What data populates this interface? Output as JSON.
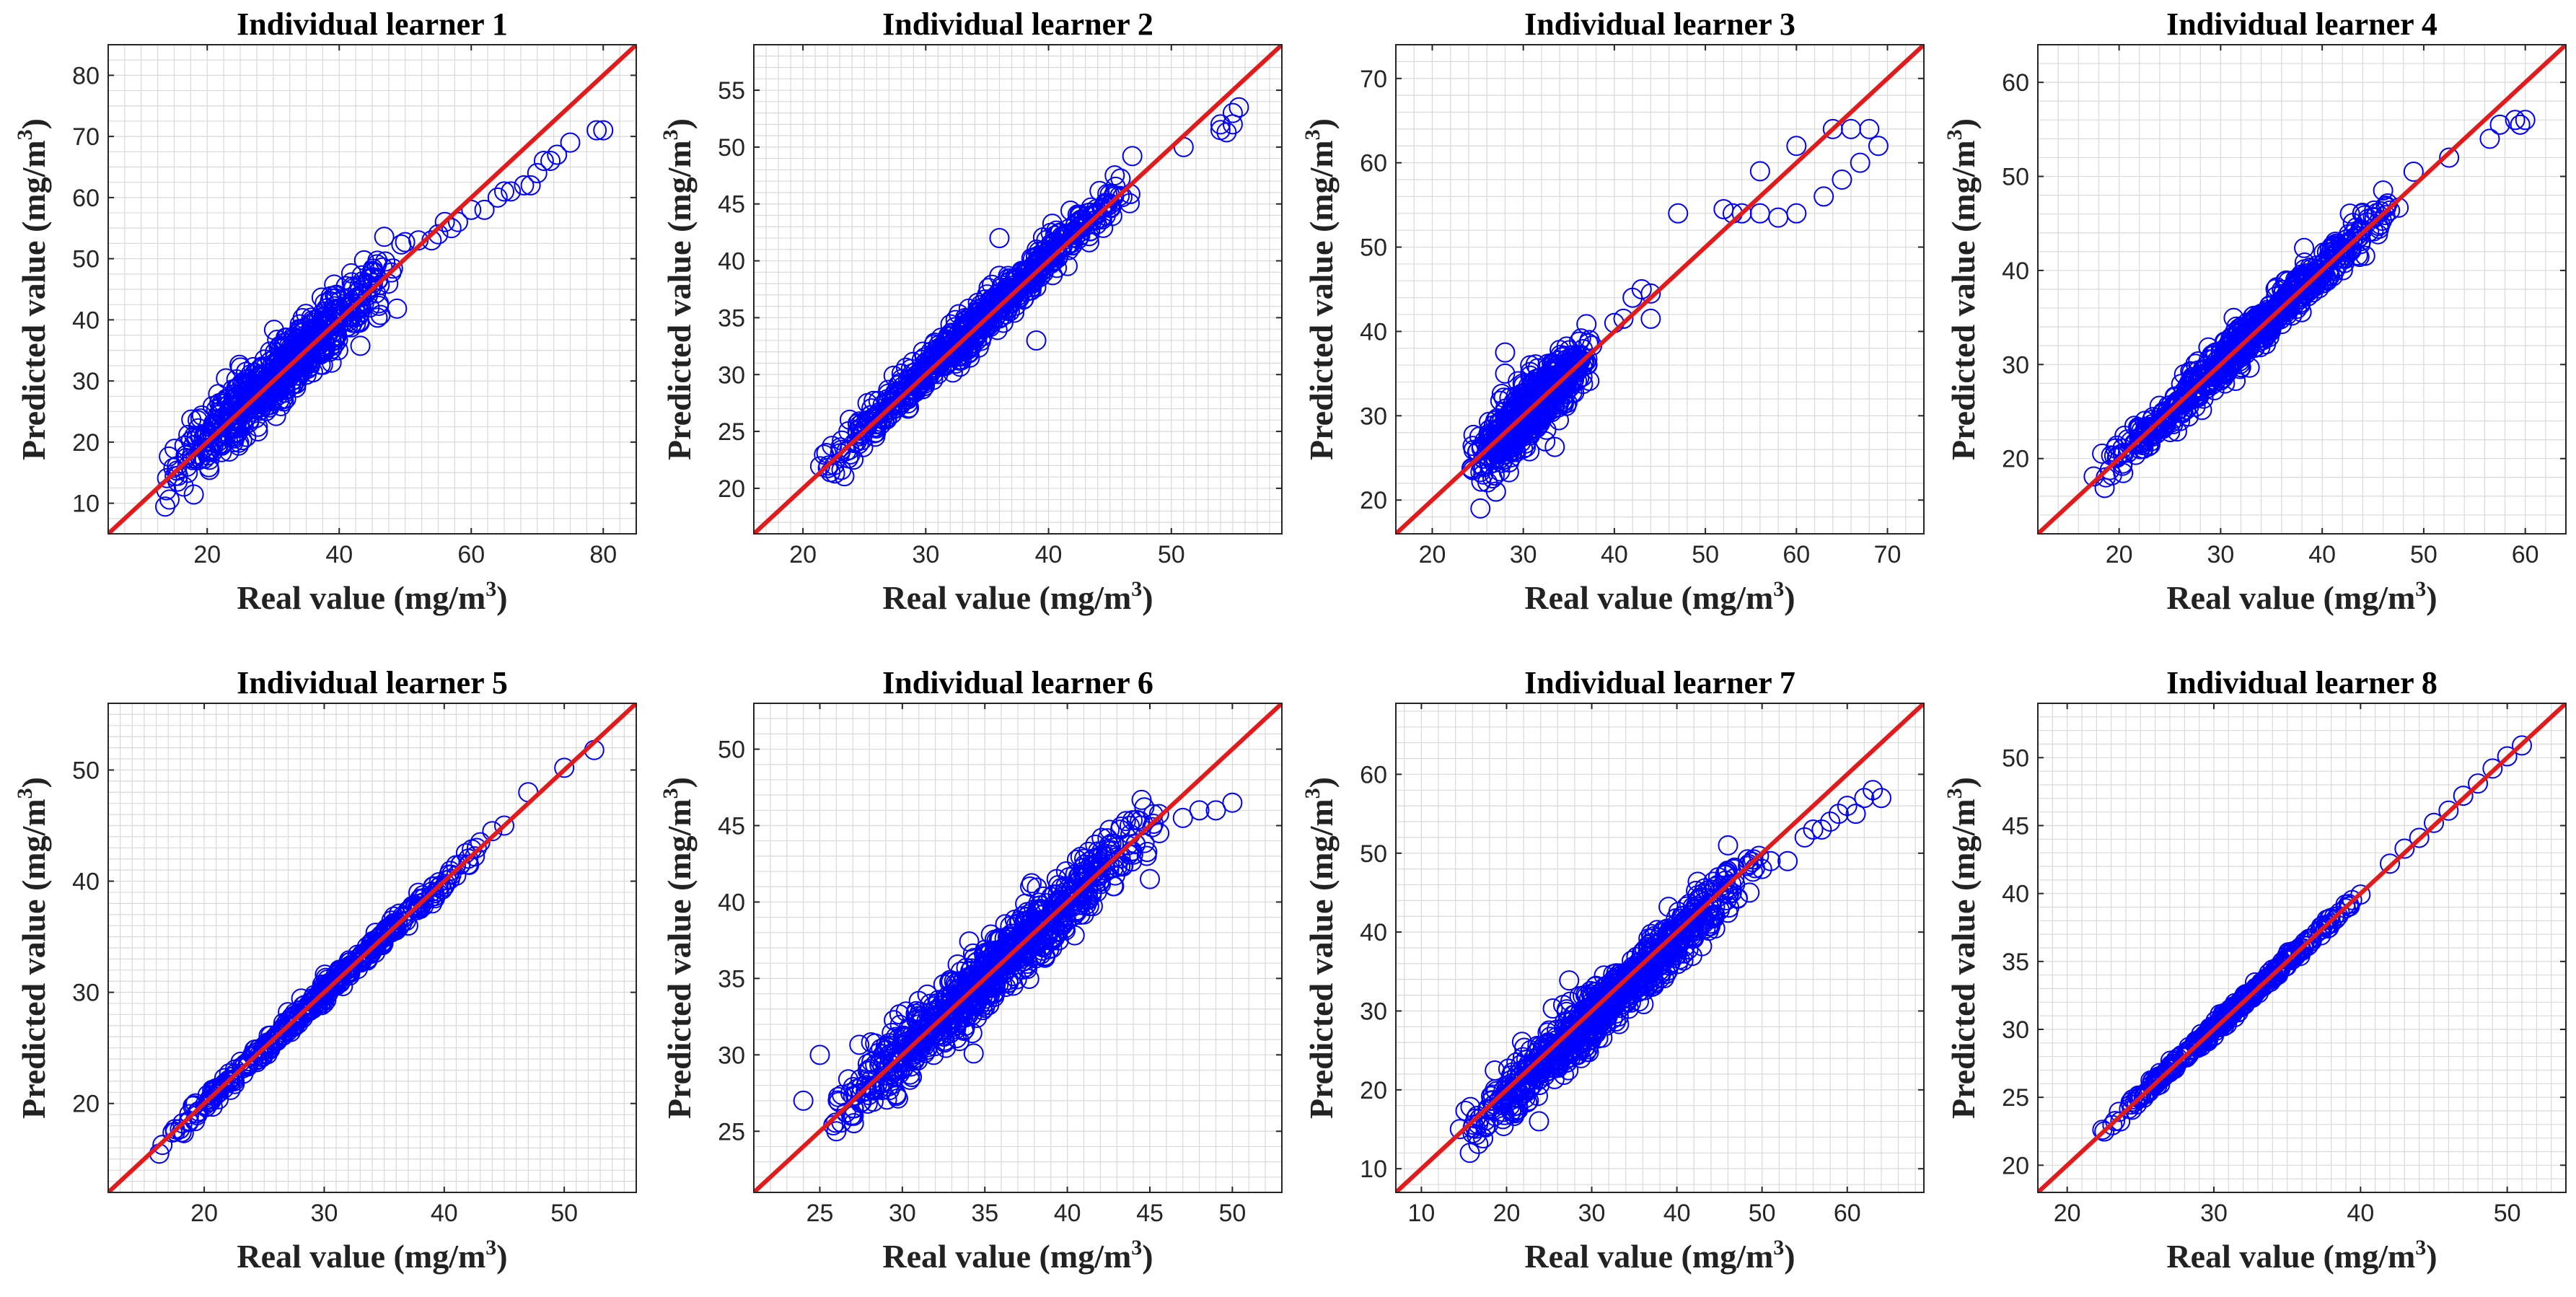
{
  "colors": {
    "points": "#0000ff",
    "diagonal": "#e31a1c",
    "grid": "#d9d9d9",
    "axis": "#262626"
  },
  "chart_data": [
    {
      "type": "scatter",
      "title": "Individual learner 1",
      "xlabel": "Real value (mg/m",
      "ylabel": "Predicted value (mg/m",
      "unit_sup": "3",
      "xlim": [
        5,
        85
      ],
      "ylim": [
        5,
        85
      ],
      "xticks": [
        20,
        40,
        60,
        80
      ],
      "yticks": [
        10,
        20,
        30,
        40,
        50,
        60,
        70,
        80
      ],
      "xtick_labels": [
        "20",
        "40",
        "60",
        "80"
      ],
      "ytick_labels": [
        "10",
        "20",
        "30",
        "40",
        "50",
        "60",
        "70",
        "80"
      ],
      "grid": true,
      "minor_grid_step": 2.5,
      "reference_line": "y = x",
      "bulk": {
        "x_range": [
          13,
          50
        ],
        "noise": 2.6,
        "bias": 0.5,
        "count": 700
      },
      "points": [
        [
          52,
          53
        ],
        [
          54,
          53
        ],
        [
          55,
          54
        ],
        [
          56,
          56
        ],
        [
          58,
          56
        ],
        [
          60,
          58
        ],
        [
          62,
          58
        ],
        [
          64,
          60
        ],
        [
          65,
          61
        ],
        [
          66,
          61
        ],
        [
          68,
          62
        ],
        [
          69,
          62
        ],
        [
          70,
          64
        ],
        [
          71,
          66
        ],
        [
          72,
          66
        ],
        [
          73,
          67
        ],
        [
          75,
          69
        ],
        [
          79,
          71
        ],
        [
          80,
          71
        ],
        [
          45,
          48
        ],
        [
          57,
          55
        ]
      ]
    },
    {
      "type": "scatter",
      "title": "Individual learner 2",
      "xlabel": "Real value (mg/m",
      "ylabel": "Predicted value (mg/m",
      "unit_sup": "3",
      "xlim": [
        16,
        59
      ],
      "ylim": [
        16,
        59
      ],
      "xticks": [
        20,
        30,
        40,
        50
      ],
      "yticks": [
        20,
        25,
        30,
        35,
        40,
        45,
        50,
        55
      ],
      "xtick_labels": [
        "20",
        "30",
        "40",
        "50"
      ],
      "ytick_labels": [
        "20",
        "25",
        "30",
        "35",
        "40",
        "45",
        "50",
        "55"
      ],
      "grid": true,
      "minor_grid_step": 1,
      "reference_line": "y = x",
      "bulk": {
        "x_range": [
          21,
          48
        ],
        "noise": 0.9,
        "bias": 0.3,
        "count": 700
      },
      "points": [
        [
          54,
          52
        ],
        [
          54,
          51.5
        ],
        [
          55,
          52
        ],
        [
          55,
          53
        ],
        [
          55.5,
          53.5
        ],
        [
          54.5,
          51.3
        ],
        [
          51,
          50
        ],
        [
          39,
          33
        ],
        [
          36,
          42
        ]
      ]
    },
    {
      "type": "scatter",
      "title": "Individual learner 3",
      "xlabel": "Real value (mg/m",
      "ylabel": "Predicted value (mg/m",
      "unit_sup": "3",
      "xlim": [
        16,
        74
      ],
      "ylim": [
        16,
        74
      ],
      "xticks": [
        20,
        30,
        40,
        50,
        60,
        70
      ],
      "yticks": [
        20,
        30,
        40,
        50,
        60,
        70
      ],
      "xtick_labels": [
        "20",
        "30",
        "40",
        "50",
        "60",
        "70"
      ],
      "ytick_labels": [
        "20",
        "30",
        "40",
        "50",
        "60",
        "70"
      ],
      "grid": true,
      "minor_grid_step": 2,
      "reference_line": "y = x",
      "bulk": {
        "x_range": [
          24,
          38
        ],
        "noise": 1.8,
        "bias": 0,
        "count": 600
      },
      "points": [
        [
          27,
          21
        ],
        [
          28,
          37.5
        ],
        [
          28,
          35
        ],
        [
          40,
          41
        ],
        [
          41,
          41.5
        ],
        [
          42,
          44
        ],
        [
          43,
          45
        ],
        [
          44,
          44.5
        ],
        [
          44,
          41.5
        ],
        [
          47,
          54
        ],
        [
          52,
          54.5
        ],
        [
          53,
          54
        ],
        [
          54,
          54
        ],
        [
          56,
          59
        ],
        [
          56,
          54
        ],
        [
          58,
          53.5
        ],
        [
          60,
          62
        ],
        [
          60,
          54
        ],
        [
          63,
          56
        ],
        [
          64,
          64
        ],
        [
          65,
          58
        ],
        [
          66,
          64
        ],
        [
          67,
          60
        ],
        [
          68,
          64
        ],
        [
          69,
          62
        ]
      ]
    },
    {
      "type": "scatter",
      "title": "Individual learner 4",
      "xlabel": "Real value (mg/m",
      "ylabel": "Predicted value (mg/m",
      "unit_sup": "3",
      "xlim": [
        12,
        64
      ],
      "ylim": [
        12,
        64
      ],
      "xticks": [
        20,
        30,
        40,
        50,
        60
      ],
      "yticks": [
        20,
        30,
        40,
        50,
        60
      ],
      "xtick_labels": [
        "20",
        "30",
        "40",
        "50",
        "60"
      ],
      "ytick_labels": [
        "20",
        "30",
        "40",
        "50",
        "60"
      ],
      "grid": true,
      "minor_grid_step": 2,
      "reference_line": "y = x",
      "bulk": {
        "x_range": [
          17,
          48
        ],
        "noise": 1.1,
        "bias": 0,
        "count": 700
      },
      "points": [
        [
          49,
          50.5
        ],
        [
          46,
          48.5
        ],
        [
          52.5,
          52
        ],
        [
          56.5,
          54
        ],
        [
          57.5,
          55.5
        ],
        [
          59,
          56
        ],
        [
          59.5,
          55.5
        ],
        [
          60,
          56
        ]
      ]
    },
    {
      "type": "scatter",
      "title": "Individual learner 5",
      "xlabel": "Real value (mg/m",
      "ylabel": "Predicted value (mg/m",
      "unit_sup": "3",
      "xlim": [
        12,
        56
      ],
      "ylim": [
        12,
        56
      ],
      "xticks": [
        20,
        30,
        40,
        50
      ],
      "yticks": [
        20,
        30,
        40,
        50
      ],
      "xtick_labels": [
        "20",
        "30",
        "40",
        "50"
      ],
      "ytick_labels": [
        "20",
        "30",
        "40",
        "50"
      ],
      "grid": true,
      "minor_grid_step": 1,
      "reference_line": "y = x",
      "bulk": {
        "x_range": [
          15.5,
          44
        ],
        "noise": 0.45,
        "bias": 0,
        "count": 380
      },
      "points": [
        [
          37,
          36
        ],
        [
          38,
          37.5
        ],
        [
          39,
          38
        ],
        [
          40,
          39.5
        ],
        [
          41,
          40.5
        ],
        [
          42,
          41.5
        ],
        [
          43,
          43.5
        ],
        [
          44,
          44.5
        ],
        [
          45,
          45
        ],
        [
          47,
          48
        ],
        [
          50,
          50.2
        ],
        [
          52.5,
          51.8
        ]
      ]
    },
    {
      "type": "scatter",
      "title": "Individual learner 6",
      "xlabel": "Real value (mg/m",
      "ylabel": "Predicted value (mg/m",
      "unit_sup": "3",
      "xlim": [
        21,
        53
      ],
      "ylim": [
        21,
        53
      ],
      "xticks": [
        25,
        30,
        35,
        40,
        45,
        50
      ],
      "yticks": [
        25,
        30,
        35,
        40,
        45,
        50
      ],
      "xtick_labels": [
        "25",
        "30",
        "35",
        "40",
        "45",
        "50"
      ],
      "ytick_labels": [
        "25",
        "30",
        "35",
        "40",
        "45",
        "50"
      ],
      "grid": true,
      "minor_grid_step": 1,
      "reference_line": "y = x",
      "bulk": {
        "x_range": [
          25,
          46
        ],
        "noise": 1.1,
        "bias": 0,
        "count": 850
      },
      "points": [
        [
          24,
          27
        ],
        [
          25,
          30
        ],
        [
          26,
          25
        ],
        [
          47,
          45.5
        ],
        [
          48,
          46
        ],
        [
          49,
          46
        ],
        [
          50,
          46.5
        ],
        [
          45,
          41.5
        ]
      ]
    },
    {
      "type": "scatter",
      "title": "Individual learner 7",
      "xlabel": "Real value (mg/m",
      "ylabel": "Predicted value (mg/m",
      "unit_sup": "3",
      "xlim": [
        7,
        69
      ],
      "ylim": [
        7,
        69
      ],
      "xticks": [
        10,
        20,
        30,
        40,
        50,
        60
      ],
      "yticks": [
        10,
        20,
        30,
        40,
        50,
        60
      ],
      "xtick_labels": [
        "10",
        "20",
        "30",
        "40",
        "50",
        "60"
      ],
      "ytick_labels": [
        "10",
        "20",
        "30",
        "40",
        "50",
        "60"
      ],
      "grid": true,
      "minor_grid_step": 2,
      "reference_line": "y = x",
      "bulk": {
        "x_range": [
          14,
          50
        ],
        "noise": 1.8,
        "bias": -0.8,
        "count": 850
      },
      "points": [
        [
          50,
          48
        ],
        [
          51,
          49
        ],
        [
          53,
          49
        ],
        [
          55,
          52
        ],
        [
          56,
          53
        ],
        [
          57,
          53
        ],
        [
          58,
          54
        ],
        [
          59,
          55
        ],
        [
          60,
          56
        ],
        [
          61,
          55
        ],
        [
          62,
          57
        ],
        [
          63,
          58
        ],
        [
          64,
          57
        ],
        [
          46,
          51
        ]
      ]
    },
    {
      "type": "scatter",
      "title": "Individual learner 8",
      "xlabel": "Real value (mg/m",
      "ylabel": "Predicted value (mg/m",
      "unit_sup": "3",
      "xlim": [
        18,
        54
      ],
      "ylim": [
        18,
        54
      ],
      "xticks": [
        20,
        30,
        40,
        50
      ],
      "yticks": [
        20,
        25,
        30,
        35,
        40,
        45,
        50
      ],
      "xtick_labels": [
        "20",
        "30",
        "40",
        "50"
      ],
      "ytick_labels": [
        "20",
        "25",
        "30",
        "35",
        "40",
        "45",
        "50"
      ],
      "grid": true,
      "minor_grid_step": 1,
      "reference_line": "y = x",
      "bulk": {
        "x_range": [
          21.5,
          41
        ],
        "noise": 0.22,
        "bias": 0,
        "count": 320
      },
      "points": [
        [
          42,
          42.2
        ],
        [
          43,
          43.3
        ],
        [
          44,
          44.1
        ],
        [
          45,
          45.2
        ],
        [
          46,
          46.1
        ],
        [
          47,
          47.2
        ],
        [
          48,
          48.1
        ],
        [
          49,
          49.2
        ],
        [
          50,
          50.1
        ],
        [
          51,
          50.9
        ]
      ]
    }
  ]
}
